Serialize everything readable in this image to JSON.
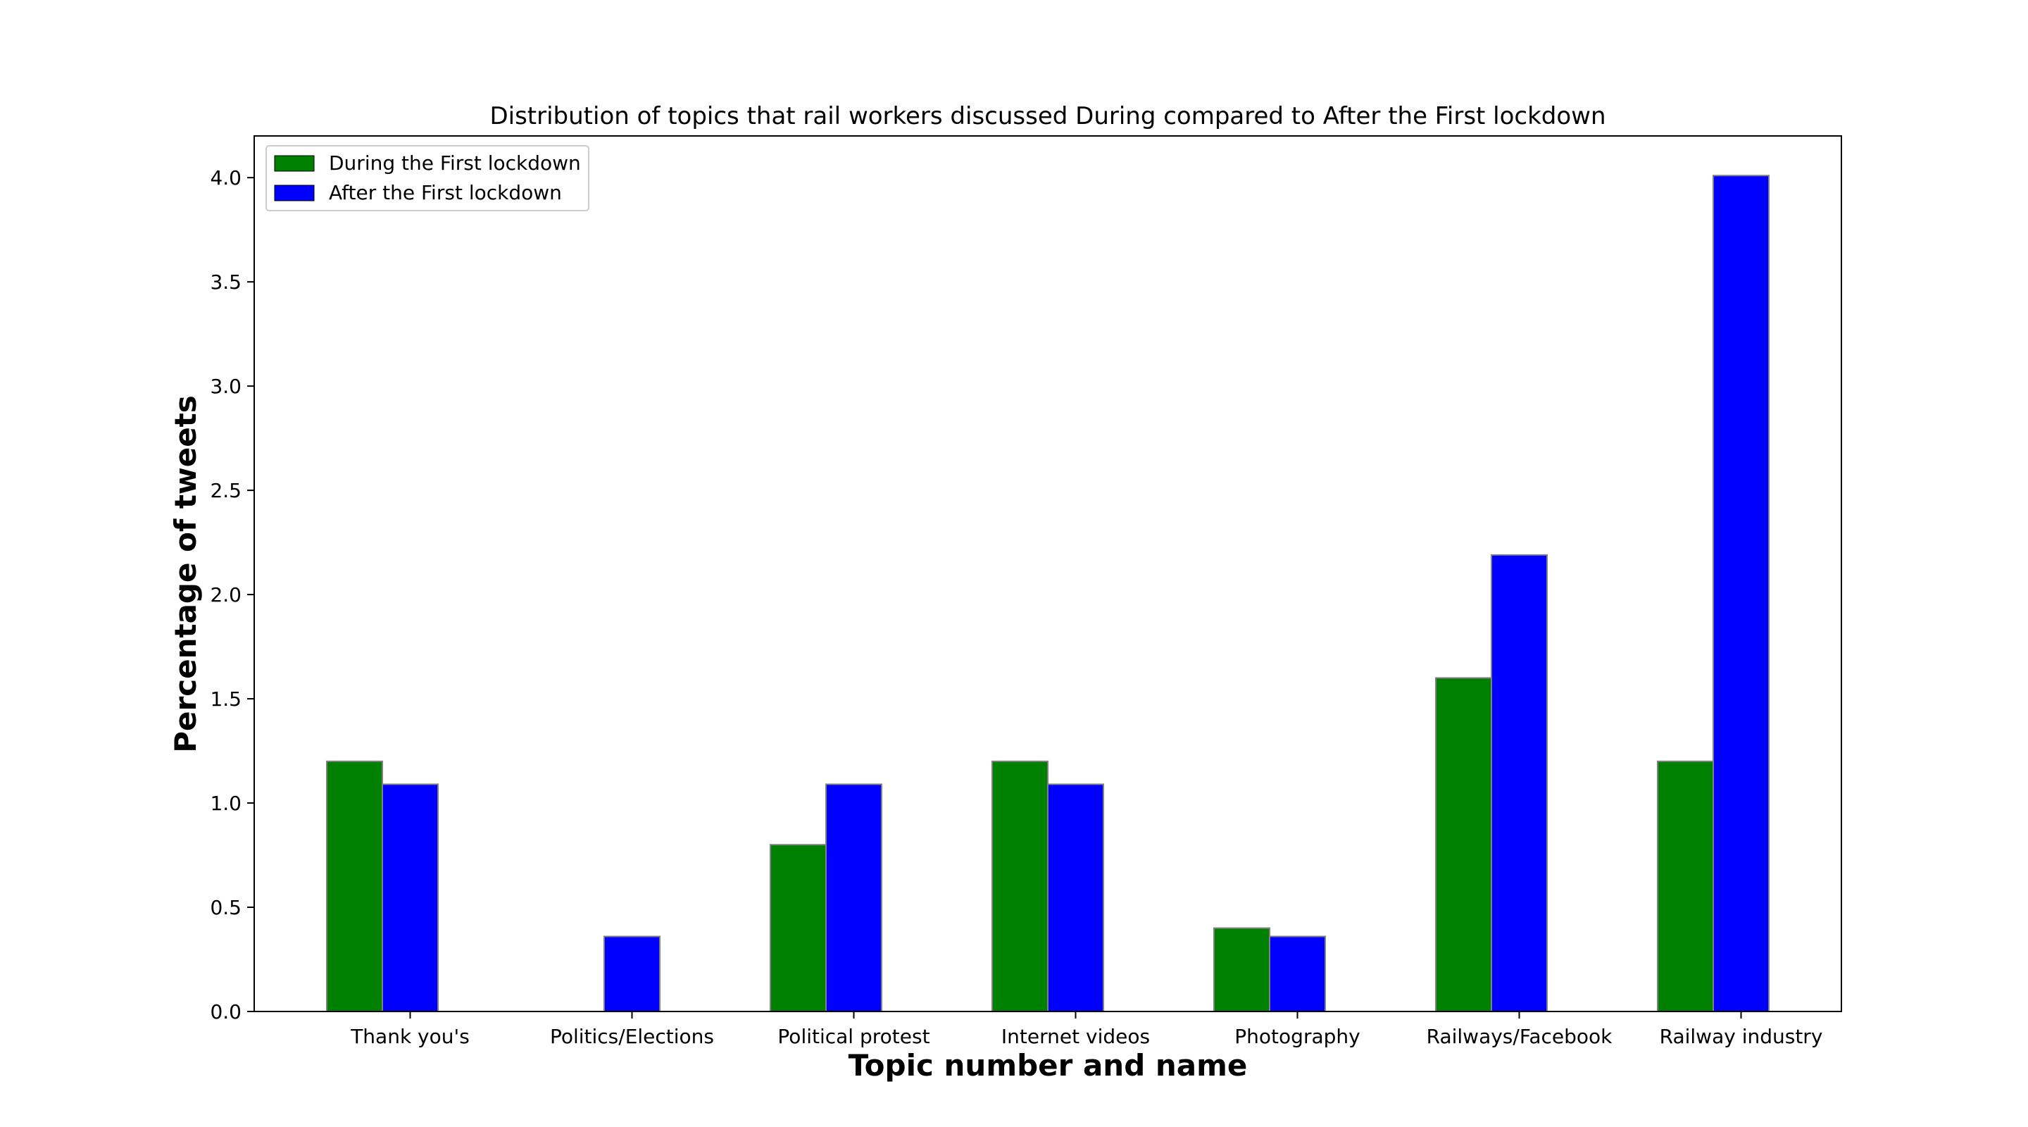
{
  "chart_data": {
    "type": "bar",
    "title": "Distribution of topics that rail workers discussed During compared to After the First lockdown",
    "xlabel": "Topic number and name",
    "ylabel": "Percentage of tweets",
    "categories": [
      "Thank you's",
      "Politics/Elections",
      "Political protest",
      "Internet videos",
      "Photography",
      "Railways/Facebook",
      "Railway industry"
    ],
    "series": [
      {
        "name": "During the First lockdown",
        "color": "#008000",
        "values": [
          1.2,
          0.0,
          0.8,
          1.2,
          0.4,
          1.6,
          1.2
        ]
      },
      {
        "name": "After the First lockdown",
        "color": "#0000ff",
        "values": [
          1.09,
          0.36,
          1.09,
          1.09,
          0.36,
          2.19,
          4.01
        ]
      }
    ],
    "ylim": [
      0,
      4.2
    ],
    "yticks": [
      "0.0",
      "0.5",
      "1.0",
      "1.5",
      "2.0",
      "2.5",
      "3.0",
      "3.5",
      "4.0"
    ],
    "grid": false,
    "legend_position": "top-left"
  }
}
